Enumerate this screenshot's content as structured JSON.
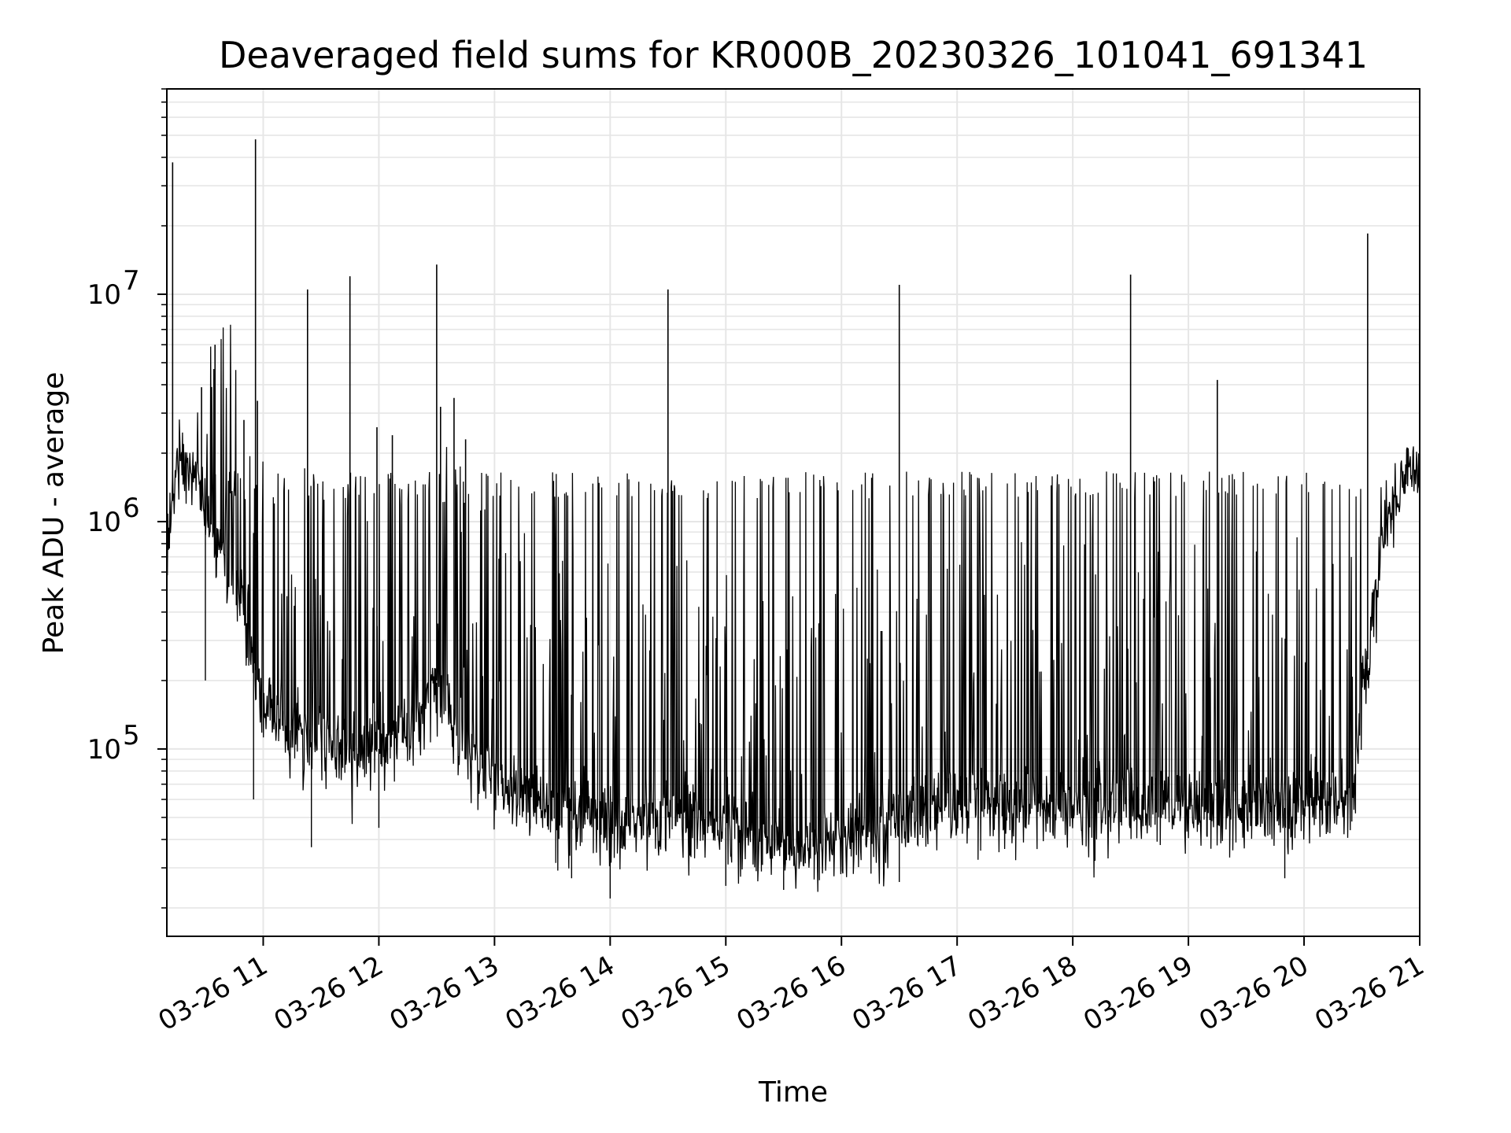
{
  "chart_data": {
    "type": "line",
    "title": "Deaveraged field sums for KR000B_20230326_101041_691341",
    "xlabel": "Time",
    "ylabel": "Peak ADU - average",
    "x_range": [
      "03-26 10:10",
      "03-26 21:00"
    ],
    "y_scale": "log",
    "ylim": [
      15000,
      80000000
    ],
    "grid": true,
    "line_color": "#000000",
    "grid_color": "#e6e6e6",
    "x_ticks": [
      {
        "value": "03-26 11",
        "label": "03-26 11"
      },
      {
        "value": "03-26 12",
        "label": "03-26 12"
      },
      {
        "value": "03-26 13",
        "label": "03-26 13"
      },
      {
        "value": "03-26 14",
        "label": "03-26 14"
      },
      {
        "value": "03-26 15",
        "label": "03-26 15"
      },
      {
        "value": "03-26 16",
        "label": "03-26 16"
      },
      {
        "value": "03-26 17",
        "label": "03-26 17"
      },
      {
        "value": "03-26 18",
        "label": "03-26 18"
      },
      {
        "value": "03-26 19",
        "label": "03-26 19"
      },
      {
        "value": "03-26 20",
        "label": "03-26 20"
      },
      {
        "value": "03-26 21",
        "label": "03-26 21"
      }
    ],
    "y_ticks": [
      {
        "value": 100000,
        "base": "10",
        "exp": "5"
      },
      {
        "value": 1000000,
        "base": "10",
        "exp": "6"
      },
      {
        "value": 10000000,
        "base": "10",
        "exp": "7"
      }
    ],
    "baseline": [
      [
        "03-26 10:10",
        700000
      ],
      [
        "03-26 10:15",
        1800000
      ],
      [
        "03-26 10:25",
        1700000
      ],
      [
        "03-26 10:35",
        800000
      ],
      [
        "03-26 10:50",
        400000
      ],
      [
        "03-26 11:00",
        150000
      ],
      [
        "03-26 11:30",
        100000
      ],
      [
        "03-26 12:00",
        100000
      ],
      [
        "03-26 12:20",
        150000
      ],
      [
        "03-26 12:30",
        200000
      ],
      [
        "03-26 12:45",
        100000
      ],
      [
        "03-26 13:00",
        70000
      ],
      [
        "03-26 13:30",
        50000
      ],
      [
        "03-26 14:00",
        45000
      ],
      [
        "03-26 14:30",
        50000
      ],
      [
        "03-26 15:00",
        45000
      ],
      [
        "03-26 15:30",
        38000
      ],
      [
        "03-26 16:00",
        38000
      ],
      [
        "03-26 16:30",
        50000
      ],
      [
        "03-26 17:00",
        55000
      ],
      [
        "03-26 18:00",
        55000
      ],
      [
        "03-26 18:30",
        55000
      ],
      [
        "03-26 19:00",
        55000
      ],
      [
        "03-26 20:00",
        55000
      ],
      [
        "03-26 20:25",
        60000
      ],
      [
        "03-26 20:30",
        150000
      ],
      [
        "03-26 20:40",
        800000
      ],
      [
        "03-26 20:50",
        1500000
      ],
      [
        "03-26 21:00",
        1900000
      ]
    ],
    "plateau_value": 1450000,
    "spikes": [
      [
        "03-26 10:13",
        38000000
      ],
      [
        "03-26 10:28",
        3900000
      ],
      [
        "03-26 10:35",
        6000000
      ],
      [
        "03-26 10:50",
        2800000
      ],
      [
        "03-26 10:56",
        48000000
      ],
      [
        "03-26 10:57",
        3400000
      ],
      [
        "03-26 11:23",
        10500000
      ],
      [
        "03-26 11:45",
        12000000
      ],
      [
        "03-26 11:59",
        2600000
      ],
      [
        "03-26 12:07",
        2400000
      ],
      [
        "03-26 12:30",
        13500000
      ],
      [
        "03-26 12:32",
        3200000
      ],
      [
        "03-26 12:39",
        3500000
      ],
      [
        "03-26 12:45",
        2300000
      ],
      [
        "03-26 14:30",
        10500000
      ],
      [
        "03-26 16:30",
        11000000
      ],
      [
        "03-26 18:30",
        12200000
      ],
      [
        "03-26 19:15",
        4200000
      ],
      [
        "03-26 20:33",
        18500000
      ]
    ],
    "dips": [
      [
        "03-26 10:30",
        200000
      ],
      [
        "03-26 10:55",
        60000
      ],
      [
        "03-26 11:25",
        37000
      ],
      [
        "03-26 12:00",
        45000
      ],
      [
        "03-26 13:40",
        27000
      ],
      [
        "03-26 14:00",
        22000
      ],
      [
        "03-26 15:00",
        25000
      ],
      [
        "03-26 15:30",
        24000
      ],
      [
        "03-26 16:30",
        26000
      ],
      [
        "03-26 19:50",
        27000
      ]
    ]
  }
}
